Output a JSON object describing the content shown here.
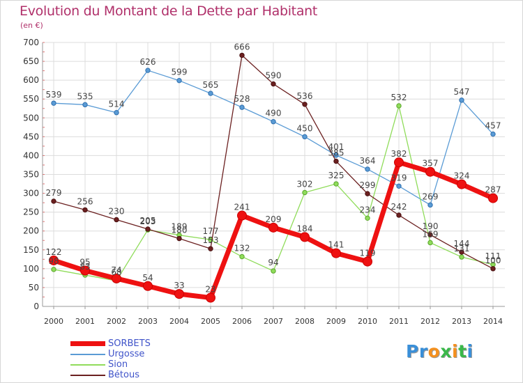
{
  "title": "Evolution du Montant de la Dette par Habitant",
  "unit_label": "(en €)",
  "logo": {
    "text": "Proxiti",
    "letter_colors": [
      "#3a8fd8",
      "#3a8fd8",
      "#f4901e",
      "#3ab84a",
      "#f4901e",
      "#3ab84a",
      "#3a8fd8"
    ]
  },
  "chart_data": {
    "type": "line",
    "x": [
      "2000",
      "2001",
      "2002",
      "2003",
      "2004",
      "2005",
      "2006",
      "2007",
      "2008",
      "2009",
      "2010",
      "2011",
      "2012",
      "2013",
      "2014"
    ],
    "ylim": [
      0,
      700
    ],
    "yticks": [
      0,
      50,
      100,
      150,
      200,
      250,
      300,
      350,
      400,
      450,
      500,
      550,
      600,
      650,
      700
    ],
    "grid": true,
    "legend_position": "bottom-left",
    "series": [
      {
        "name": "Urgosse",
        "color": "#5a9bd5",
        "values": [
          539,
          535,
          514,
          626,
          599,
          565,
          528,
          490,
          450,
          401,
          364,
          319,
          269,
          547,
          457
        ]
      },
      {
        "name": "Sion",
        "color": "#8fdc5a",
        "values": [
          98,
          83,
          68,
          203,
          189,
          177,
          132,
          94,
          302,
          325,
          234,
          532,
          169,
          131,
          111
        ]
      },
      {
        "name": "Bétous",
        "color": "#6b2020",
        "values": [
          279,
          256,
          230,
          205,
          180,
          153,
          666,
          590,
          536,
          385,
          299,
          242,
          190,
          144,
          100
        ]
      },
      {
        "name": "SORBETS",
        "color": "#ee1111",
        "values": [
          122,
          95,
          74,
          54,
          33,
          23,
          241,
          209,
          184,
          141,
          119,
          382,
          357,
          324,
          287
        ],
        "label_values": [
          "122",
          "95",
          "74",
          "54",
          "33",
          "23",
          "241",
          "209",
          "184",
          "141",
          "119",
          "382",
          "357",
          "324",
          "287"
        ]
      }
    ],
    "legend_order": [
      "SORBETS",
      "Urgosse",
      "Sion",
      "Bétous"
    ]
  }
}
